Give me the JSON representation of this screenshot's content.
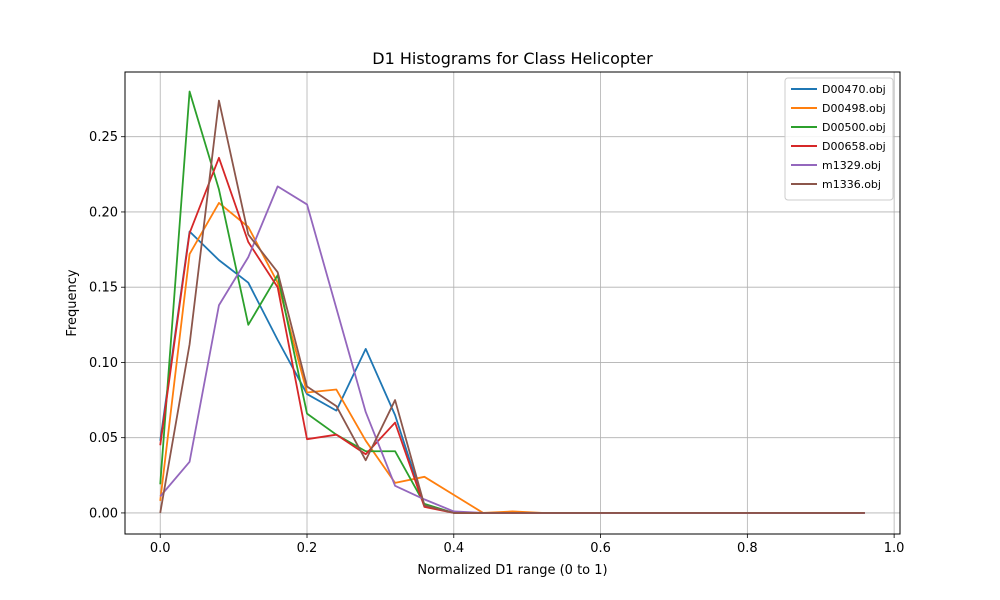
{
  "chart_data": {
    "type": "line",
    "title": "D1 Histograms for Class Helicopter",
    "xlabel": "Normalized D1 range (0 to 1)",
    "ylabel": "Frequency",
    "xlim": [
      -0.048,
      1.008
    ],
    "ylim": [
      -0.014,
      0.293
    ],
    "xticks": [
      "0.0",
      "0.2",
      "0.4",
      "0.6",
      "0.8",
      "1.0"
    ],
    "yticks": [
      "0.00",
      "0.05",
      "0.10",
      "0.15",
      "0.20",
      "0.25"
    ],
    "grid": true,
    "legend_position": "upper right",
    "x": [
      0.0,
      0.04,
      0.08,
      0.12,
      0.16,
      0.2,
      0.24,
      0.28,
      0.32,
      0.36,
      0.4,
      0.44,
      0.48,
      0.52,
      0.56,
      0.6,
      0.64,
      0.68,
      0.72,
      0.76,
      0.8,
      0.84,
      0.88,
      0.92,
      0.96
    ],
    "series": [
      {
        "name": "D00470.obj",
        "color": "#1f77b4",
        "values": [
          0.048,
          0.187,
          0.168,
          0.153,
          0.115,
          0.079,
          0.068,
          0.109,
          0.065,
          0.005,
          0.0,
          0.0,
          0.0,
          0.0,
          0.0,
          0.0,
          0.0,
          0.0,
          0.0,
          0.0,
          0.0,
          0.0,
          0.0,
          0.0,
          0.0
        ]
      },
      {
        "name": "D00498.obj",
        "color": "#ff7f0e",
        "values": [
          0.008,
          0.172,
          0.206,
          0.19,
          0.153,
          0.08,
          0.082,
          0.048,
          0.02,
          0.024,
          0.012,
          0.0,
          0.001,
          0.0,
          0.0,
          0.0,
          0.0,
          0.0,
          0.0,
          0.0,
          0.0,
          0.0,
          0.0,
          0.0,
          0.0
        ]
      },
      {
        "name": "D00500.obj",
        "color": "#2ca02c",
        "values": [
          0.019,
          0.28,
          0.215,
          0.125,
          0.158,
          0.066,
          0.052,
          0.041,
          0.041,
          0.006,
          0.0,
          0.0,
          0.0,
          0.0,
          0.0,
          0.0,
          0.0,
          0.0,
          0.0,
          0.0,
          0.0,
          0.0,
          0.0,
          0.0,
          0.0
        ]
      },
      {
        "name": "D00658.obj",
        "color": "#d62728",
        "values": [
          0.045,
          0.186,
          0.236,
          0.18,
          0.15,
          0.049,
          0.052,
          0.039,
          0.06,
          0.004,
          0.0,
          0.0,
          0.0,
          0.0,
          0.0,
          0.0,
          0.0,
          0.0,
          0.0,
          0.0,
          0.0,
          0.0,
          0.0,
          0.0,
          0.0
        ]
      },
      {
        "name": "m1329.obj",
        "color": "#9467bd",
        "values": [
          0.011,
          0.034,
          0.138,
          0.17,
          0.217,
          0.205,
          0.136,
          0.067,
          0.018,
          0.009,
          0.001,
          0.0,
          0.0,
          0.0,
          0.0,
          0.0,
          0.0,
          0.0,
          0.0,
          0.0,
          0.0,
          0.0,
          0.0,
          0.0,
          0.0
        ]
      },
      {
        "name": "m1336.obj",
        "color": "#8c564b",
        "values": [
          0.0,
          0.112,
          0.274,
          0.185,
          0.16,
          0.084,
          0.071,
          0.035,
          0.075,
          0.005,
          0.0,
          0.0,
          0.0,
          0.0,
          0.0,
          0.0,
          0.0,
          0.0,
          0.0,
          0.0,
          0.0,
          0.0,
          0.0,
          0.0,
          0.0
        ]
      }
    ]
  }
}
